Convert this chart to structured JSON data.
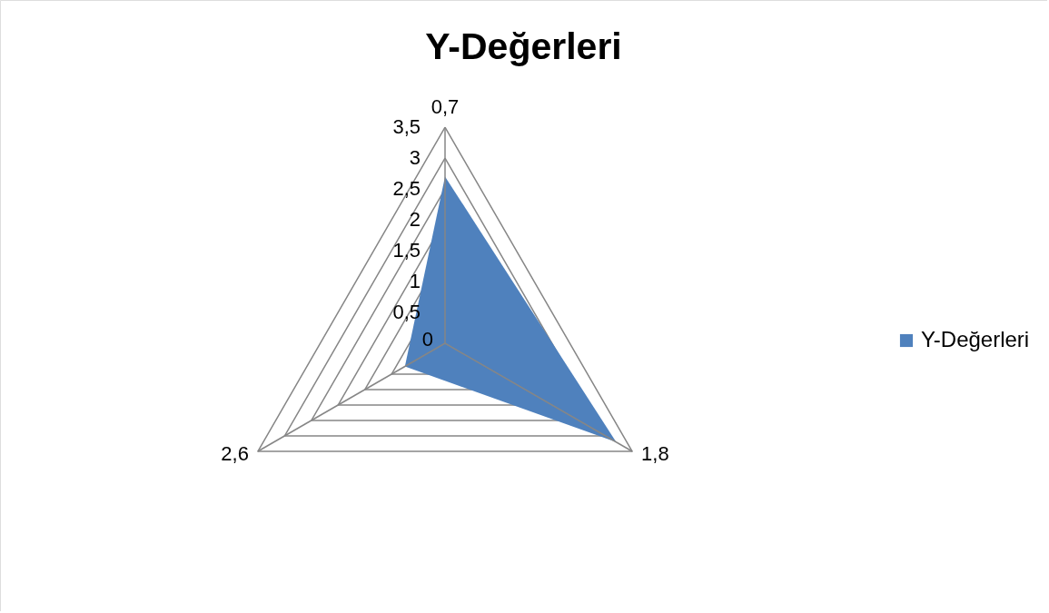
{
  "chart_data": {
    "type": "radar",
    "title": "Y-Değerleri",
    "categories": [
      "0,7",
      "1,8",
      "2,6"
    ],
    "series": [
      {
        "name": "Y-Değerleri",
        "color": "#4f81bd",
        "values": [
          2.7,
          3.2,
          0.75
        ]
      }
    ],
    "ylim": [
      0,
      3.5
    ],
    "yticks": [
      {
        "value": 0,
        "label": "0"
      },
      {
        "value": 0.5,
        "label": "0,5"
      },
      1,
      {
        "value": 1.5,
        "label": "1,5"
      },
      2,
      {
        "value": 2.5,
        "label": "2,5"
      },
      3,
      {
        "value": 3.5,
        "label": "3,5"
      }
    ],
    "grid": true,
    "legend": "right"
  }
}
